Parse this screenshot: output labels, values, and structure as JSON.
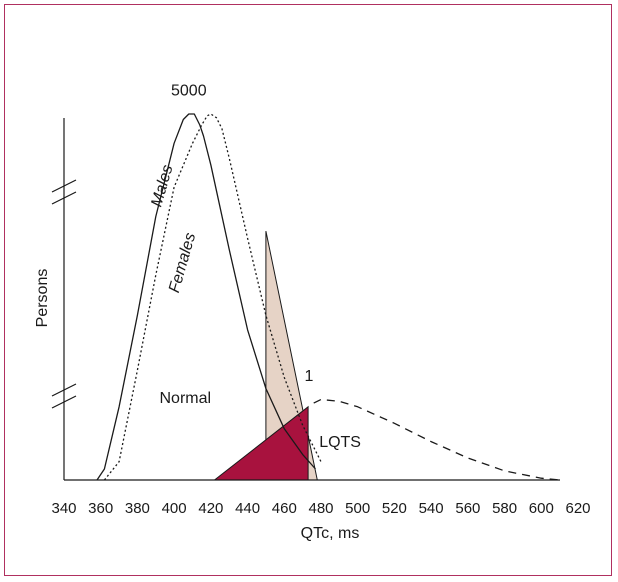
{
  "chart_data": {
    "type": "line",
    "title": "",
    "xlabel": "QTc, ms",
    "ylabel": "Persons",
    "xlim": [
      340,
      620
    ],
    "x_ticks": [
      "340",
      "360",
      "380",
      "400",
      "420",
      "440",
      "460",
      "480",
      "500",
      "520",
      "540",
      "560",
      "580",
      "600",
      "620"
    ],
    "y_axis_breaks": 2,
    "y_scale": "broken, schematic",
    "grid": false,
    "legend": "none",
    "series": [
      {
        "name": "Males",
        "style": "solid",
        "x": [
          358,
          362,
          370,
          380,
          390,
          400,
          405,
          408,
          411,
          414,
          416,
          420,
          430,
          440,
          450,
          460,
          470,
          477
        ],
        "y": [
          0.0,
          0.03,
          0.2,
          0.45,
          0.72,
          0.92,
          0.985,
          1.0,
          1.0,
          0.97,
          0.94,
          0.86,
          0.63,
          0.41,
          0.25,
          0.14,
          0.07,
          0.03
        ]
      },
      {
        "name": "Females",
        "style": "dotted",
        "x": [
          362,
          370,
          380,
          390,
          400,
          410,
          415,
          418,
          420,
          423,
          426,
          430,
          440,
          450,
          460,
          470,
          480
        ],
        "y": [
          0.0,
          0.05,
          0.3,
          0.56,
          0.8,
          0.92,
          0.97,
          0.995,
          1.0,
          0.99,
          0.96,
          0.88,
          0.66,
          0.45,
          0.28,
          0.15,
          0.05
        ]
      },
      {
        "name": "LQTS",
        "style": "dashed",
        "x": [
          476,
          480,
          490,
          500,
          520,
          540,
          560,
          580,
          600,
          610
        ],
        "y": [
          0.21,
          0.22,
          0.215,
          0.2,
          0.155,
          0.105,
          0.06,
          0.025,
          0.005,
          0.0
        ]
      }
    ],
    "shaded_regions": [
      {
        "name": "males-tail-above-cutoff",
        "color": "#e6d3c6",
        "x": [
          450,
          450,
          478,
          478
        ],
        "y": [
          0.0,
          0.68,
          0.0,
          0.0
        ]
      },
      {
        "name": "lqts-overlap",
        "color": "#a8123e",
        "x": [
          422,
          473,
          473
        ],
        "y": [
          0.0,
          0.2,
          0.0
        ]
      }
    ],
    "annotations": [
      {
        "text": "5000",
        "x": 408,
        "y": 1.05
      },
      {
        "text": "Males",
        "x": 396,
        "y": 0.8
      },
      {
        "text": "Females",
        "x": 407,
        "y": 0.59
      },
      {
        "text": "Normal",
        "x": 392,
        "y": 0.21
      },
      {
        "text": "1",
        "x": 471,
        "y": 0.27
      },
      {
        "text": "LQTS",
        "x": 479,
        "y": 0.09
      }
    ],
    "colors": {
      "frame": "#b03060",
      "overlap": "#a8123e",
      "tail": "#e6d3c6",
      "ink": "#1a1a1a"
    }
  }
}
